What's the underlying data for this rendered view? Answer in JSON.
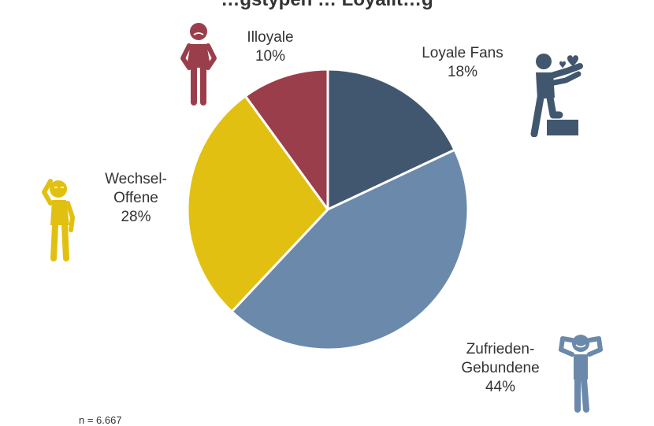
{
  "title": "…gstypen … Loyalit…g",
  "footnote": "n = 6.667",
  "chart_data": {
    "type": "pie",
    "title": "",
    "start_angle_deg": 0,
    "direction": "clockwise",
    "slices": [
      {
        "label_lines": [
          "Loyale Fans"
        ],
        "value": 18,
        "value_label": "18%",
        "color": "#41576f",
        "icon": "person-hugging-heart-icon"
      },
      {
        "label_lines": [
          "Zufrieden-",
          "Gebundene"
        ],
        "value": 44,
        "value_label": "44%",
        "color": "#6b89aa",
        "icon": "person-relaxing-icon"
      },
      {
        "label_lines": [
          "Wechsel-",
          "Offene"
        ],
        "value": 28,
        "value_label": "28%",
        "color": "#e2c011",
        "icon": "person-thinking-icon"
      },
      {
        "label_lines": [
          "Illoyale"
        ],
        "value": 10,
        "value_label": "10%",
        "color": "#9b3e4b",
        "icon": "person-grumpy-icon"
      }
    ]
  }
}
